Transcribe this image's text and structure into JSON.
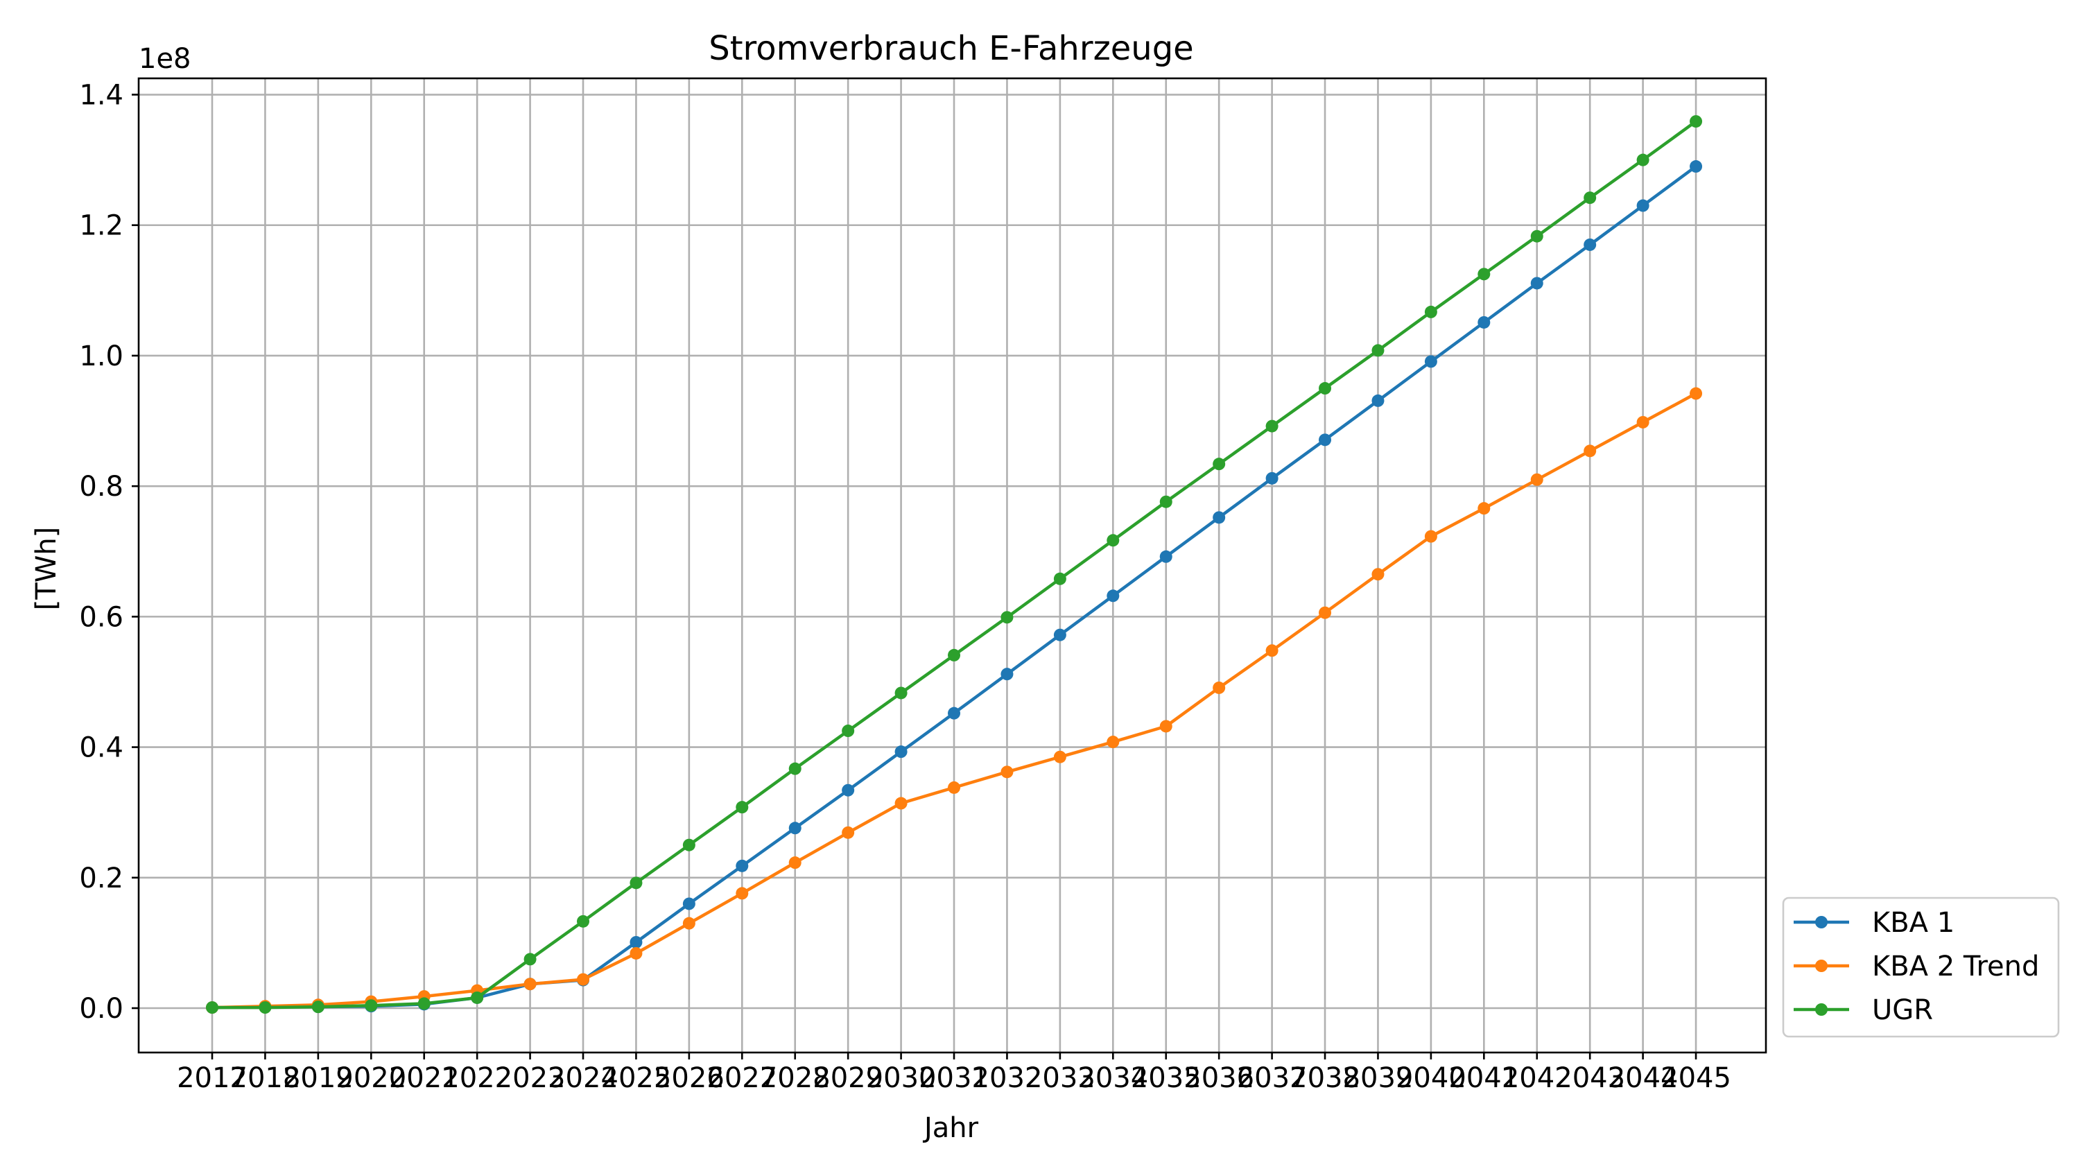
{
  "chart_data": {
    "type": "line",
    "title": "Stromverbrauch E-Fahrzeuge",
    "xlabel": "Jahr",
    "ylabel": "[TWh]",
    "y_offset_label": "1e8",
    "y_multiplier": 100000000,
    "ylim": [
      -0.068,
      1.425
    ],
    "yticks": [
      0.0,
      0.2,
      0.4,
      0.6,
      0.8,
      1.0,
      1.2,
      1.4
    ],
    "ytick_labels": [
      "0.0",
      "0.2",
      "0.4",
      "0.6",
      "0.8",
      "1.0",
      "1.2",
      "1.4"
    ],
    "grid": true,
    "legend_position": "outside-lower-right",
    "categories": [
      "2017",
      "2018",
      "2019",
      "2020",
      "2021",
      "2022",
      "2023",
      "2024",
      "2025",
      "2026",
      "2027",
      "2028",
      "2029",
      "2030",
      "2031",
      "2032",
      "2033",
      "2034",
      "2035",
      "2036",
      "2037",
      "2038",
      "2039",
      "2040",
      "2041",
      "2042",
      "2043",
      "2044",
      "2045"
    ],
    "series": [
      {
        "name": "KBA 1",
        "color": "#1f77b4",
        "values": [
          0.001,
          0.002,
          0.002,
          0.003,
          0.006,
          0.016,
          0.037,
          0.043,
          0.101,
          0.16,
          0.218,
          0.276,
          0.334,
          0.393,
          0.452,
          0.512,
          0.572,
          0.632,
          0.692,
          0.752,
          0.812,
          0.871,
          0.931,
          0.991,
          1.051,
          1.111,
          1.17,
          1.23,
          1.29
        ]
      },
      {
        "name": "KBA 2 Trend",
        "color": "#ff7f0e",
        "values": [
          0.001,
          0.003,
          0.005,
          0.01,
          0.018,
          0.027,
          0.037,
          0.044,
          0.084,
          0.13,
          0.176,
          0.223,
          0.269,
          0.314,
          0.338,
          0.362,
          0.385,
          0.408,
          0.432,
          0.491,
          0.548,
          0.606,
          0.665,
          0.723,
          0.766,
          0.81,
          0.854,
          0.898,
          0.942
        ]
      },
      {
        "name": "UGR",
        "color": "#2ca02c",
        "values": [
          0.001,
          0.001,
          0.002,
          0.004,
          0.007,
          0.016,
          0.075,
          0.133,
          0.192,
          0.25,
          0.308,
          0.367,
          0.425,
          0.483,
          0.541,
          0.599,
          0.658,
          0.717,
          0.776,
          0.834,
          0.892,
          0.95,
          1.008,
          1.067,
          1.125,
          1.183,
          1.242,
          1.3,
          1.359
        ]
      }
    ]
  }
}
